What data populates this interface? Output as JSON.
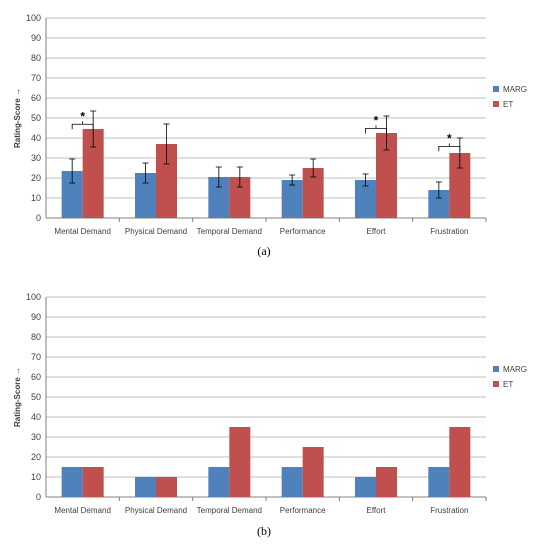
{
  "colors": {
    "marg": "#4f81bd",
    "et": "#c0504d",
    "grid": "#bfbfbf"
  },
  "chart_data": [
    {
      "type": "bar",
      "caption": "(a)",
      "ylabel": "Rating-Score →",
      "ylim": [
        0,
        100
      ],
      "yticks": [
        0,
        10,
        20,
        30,
        40,
        50,
        60,
        70,
        80,
        90,
        100
      ],
      "grid": true,
      "legend_position": "right",
      "categories": [
        "Mental Demand",
        "Physical Demand",
        "Temporal Demand",
        "Performance",
        "Effort",
        "Frustration"
      ],
      "series": [
        {
          "name": "MARG",
          "values": [
            23.5,
            22.5,
            20.5,
            19,
            19,
            14
          ],
          "errors": [
            6,
            5,
            5,
            2.5,
            3,
            4
          ]
        },
        {
          "name": "ET",
          "values": [
            44.5,
            37,
            20.5,
            25,
            42.5,
            32.5
          ],
          "errors": [
            9,
            10,
            5,
            4.5,
            8.5,
            7.5
          ]
        }
      ],
      "significance": [
        {
          "category": "Mental Demand",
          "label": "*"
        },
        {
          "category": "Effort",
          "label": "*"
        },
        {
          "category": "Frustration",
          "label": "*"
        }
      ]
    },
    {
      "type": "bar",
      "caption": "(b)",
      "ylabel": "Rating-Score →",
      "ylim": [
        0,
        100
      ],
      "yticks": [
        0,
        10,
        20,
        30,
        40,
        50,
        60,
        70,
        80,
        90,
        100
      ],
      "grid": true,
      "legend_position": "right",
      "categories": [
        "Mental Demand",
        "Physical Demand",
        "Temporal Demand",
        "Performance",
        "Effort",
        "Frustration"
      ],
      "series": [
        {
          "name": "MARG",
          "values": [
            15,
            10,
            15,
            15,
            10,
            15
          ]
        },
        {
          "name": "ET",
          "values": [
            15,
            10,
            35,
            25,
            15,
            35
          ]
        }
      ]
    }
  ]
}
